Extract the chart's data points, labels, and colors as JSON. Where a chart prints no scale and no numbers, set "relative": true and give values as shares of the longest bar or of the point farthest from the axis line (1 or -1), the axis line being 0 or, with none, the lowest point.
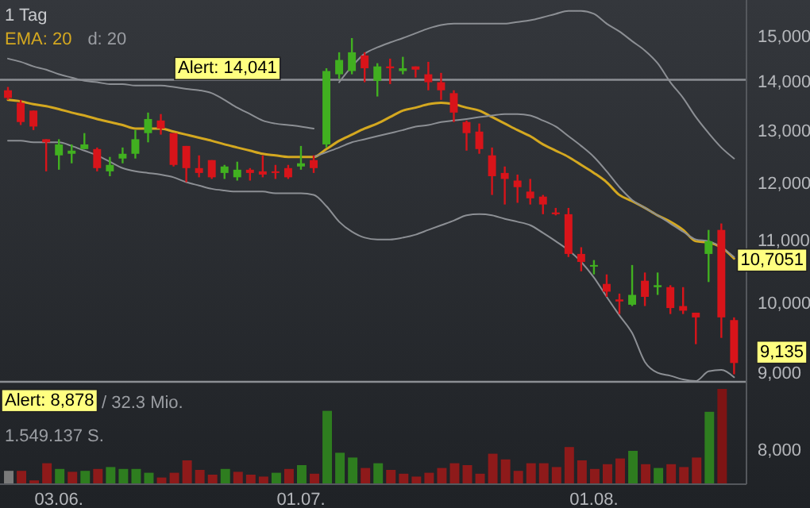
{
  "chart_data": [
    {
      "type": "candlestick",
      "title": "1 Tag",
      "log": true,
      "legend": "top left",
      "tick_labels": "y",
      "ohlc": [
        [
          13820,
          13890,
          13620,
          13660
        ],
        [
          13560,
          13620,
          13110,
          13170
        ],
        [
          13400,
          13400,
          13010,
          13080
        ],
        [
          12830,
          12830,
          12220,
          12770
        ],
        [
          12520,
          12830,
          12250,
          12730
        ],
        [
          12550,
          12730,
          12370,
          12610
        ],
        [
          12640,
          12950,
          12640,
          12730
        ],
        [
          12640,
          12670,
          12220,
          12280
        ],
        [
          12220,
          12490,
          12130,
          12340
        ],
        [
          12460,
          12670,
          12370,
          12550
        ],
        [
          12550,
          13010,
          12460,
          12830
        ],
        [
          12950,
          13360,
          12770,
          13230
        ],
        [
          13200,
          13330,
          12920,
          13040
        ],
        [
          12950,
          12950,
          12310,
          12340
        ],
        [
          12700,
          12700,
          12020,
          12280
        ],
        [
          12280,
          12520,
          12110,
          12190
        ],
        [
          12430,
          12430,
          12080,
          12110
        ],
        [
          12190,
          12340,
          12080,
          12310
        ],
        [
          12110,
          12400,
          12050,
          12250
        ],
        [
          12250,
          12280,
          12050,
          12190
        ],
        [
          12220,
          12520,
          12110,
          12160
        ],
        [
          12220,
          12340,
          12080,
          12190
        ],
        [
          12280,
          12340,
          12080,
          12110
        ],
        [
          12310,
          12700,
          12250,
          12370
        ],
        [
          12430,
          12520,
          12190,
          12280
        ],
        [
          12730,
          14290,
          12670,
          14230
        ],
        [
          14160,
          14640,
          14060,
          14470
        ],
        [
          14230,
          14960,
          14160,
          14640
        ],
        [
          14570,
          14640,
          13990,
          14290
        ],
        [
          14020,
          14400,
          13690,
          14330
        ],
        [
          14330,
          14500,
          13950,
          14290
        ],
        [
          14230,
          14540,
          14160,
          14290
        ],
        [
          14330,
          14330,
          14090,
          14260
        ],
        [
          14160,
          14430,
          13820,
          13990
        ],
        [
          13990,
          14190,
          13620,
          13820
        ],
        [
          13760,
          13820,
          13170,
          13360
        ],
        [
          13170,
          13200,
          12610,
          12950
        ],
        [
          12980,
          13140,
          12550,
          12640
        ],
        [
          12520,
          12670,
          11790,
          12130
        ],
        [
          12190,
          12310,
          11620,
          12080
        ],
        [
          12050,
          12160,
          11650,
          11930
        ],
        [
          11850,
          12080,
          11620,
          11730
        ],
        [
          11760,
          11790,
          11450,
          11620
        ],
        [
          11480,
          11560,
          11430,
          11450
        ],
        [
          11450,
          11560,
          10730,
          10780
        ],
        [
          10780,
          10890,
          10500,
          10650
        ],
        [
          10580,
          10680,
          10450,
          10600
        ],
        [
          10300,
          10450,
          10100,
          10180
        ],
        [
          10060,
          10150,
          9840,
          10030
        ],
        [
          9980,
          10600,
          9960,
          10130
        ],
        [
          10350,
          10480,
          9960,
          10100
        ],
        [
          10250,
          10480,
          10130,
          10280
        ],
        [
          10250,
          10280,
          9840,
          9930
        ],
        [
          9960,
          10250,
          9840,
          9890
        ],
        [
          9860,
          9860,
          9400,
          9790
        ],
        [
          10780,
          11180,
          10330,
          10990
        ],
        [
          11180,
          11290,
          9490,
          9790
        ],
        [
          9750,
          9790,
          8980,
          9135
        ]
      ],
      "series": [
        {
          "type": "line",
          "name": "EMA: 20",
          "color": "#d4a820",
          "values": [
            13620,
            13590,
            13530,
            13490,
            13430,
            13360,
            13300,
            13230,
            13170,
            13110,
            13040,
            13040,
            13040,
            12980,
            12920,
            12860,
            12800,
            12730,
            12670,
            12610,
            12550,
            12520,
            12490,
            12490,
            12490,
            12640,
            12800,
            12920,
            13040,
            13140,
            13270,
            13400,
            13460,
            13530,
            13560,
            13530,
            13460,
            13400,
            13270,
            13140,
            13010,
            12890,
            12730,
            12610,
            12490,
            12340,
            12190,
            12020,
            11790,
            11680,
            11560,
            11430,
            11320,
            11180,
            10990,
            10970,
            10890,
            10705
          ]
        },
        {
          "type": "line",
          "color": "#8c8f94",
          "values": [
            14500,
            14430,
            14330,
            14260,
            14160,
            14090,
            14020,
            13990,
            13950,
            13950,
            13920,
            13920,
            13920,
            13890,
            13850,
            13820,
            13760,
            13620,
            13460,
            13330,
            13200,
            13140,
            13110,
            13080,
            13040,
            null,
            13990,
            14330,
            14610,
            14750,
            14860,
            14960,
            15070,
            15180,
            15260,
            15290,
            15290,
            15290,
            15290,
            15290,
            15330,
            15370,
            15440,
            15520,
            15590,
            15590,
            15520,
            15290,
            15110,
            14890,
            14680,
            14400,
            13990,
            13660,
            13270,
            12950,
            12670,
            12460
          ]
        },
        {
          "type": "line",
          "color": "#8c8f94",
          "values": [
            null,
            null,
            null,
            null,
            null,
            null,
            null,
            null,
            null,
            null,
            null,
            null,
            null,
            null,
            null,
            null,
            null,
            null,
            null,
            null,
            null,
            null,
            null,
            null,
            12490,
            12580,
            12670,
            12770,
            12830,
            12890,
            12950,
            13010,
            13080,
            13110,
            13170,
            13200,
            13230,
            13270,
            13300,
            13330,
            13330,
            13300,
            13200,
            13080,
            12890,
            12700,
            12490,
            12220,
            11930,
            11700,
            11560,
            11430,
            11290,
            11150,
            11020,
            10990,
            10890,
            10730
          ]
        },
        {
          "type": "line",
          "color": "#8c8f94",
          "values": [
            12800,
            12800,
            12770,
            12770,
            12770,
            12700,
            12610,
            12520,
            12400,
            12280,
            12220,
            12190,
            12160,
            12110,
            12020,
            11960,
            11900,
            11870,
            11850,
            11850,
            11850,
            11820,
            11820,
            11820,
            11790,
            11590,
            11320,
            11150,
            11050,
            11020,
            11020,
            11050,
            11100,
            11180,
            11260,
            11340,
            11430,
            11450,
            11430,
            11370,
            11320,
            11260,
            11130,
            10990,
            10840,
            10650,
            10400,
            10100,
            9820,
            9560,
            9150,
            9000,
            8960,
            8910,
            8890,
            9020,
            9040,
            8940
          ]
        }
      ],
      "ylim": [
        7600,
        15850
      ],
      "yticks": [
        {
          "value": 8000,
          "label": "8,000"
        },
        {
          "value": 9000,
          "label": "9,000"
        },
        {
          "value": 10000,
          "label": "10,000"
        },
        {
          "value": 11000,
          "label": "11,000"
        },
        {
          "value": 12000,
          "label": "12,000"
        },
        {
          "value": 13000,
          "label": "13,000"
        },
        {
          "value": 14000,
          "label": "14,000"
        },
        {
          "value": 15000,
          "label": "15,000"
        }
      ],
      "ref_lines": [
        {
          "axis": "y",
          "value": 14041,
          "label": "Alert: 14,041",
          "color": "#8c8f94"
        },
        {
          "axis": "y",
          "value": 8878,
          "label": "Alert: 8,878",
          "color": "#8c8f94"
        }
      ],
      "annotations": [
        "d: 20",
        "10,7051",
        "9,135"
      ]
    },
    {
      "type": "bar",
      "relative": true,
      "tick_labels": "x",
      "categories": [
        null,
        null,
        null,
        null,
        "03.06.",
        null,
        null,
        null,
        null,
        null,
        null,
        null,
        null,
        null,
        null,
        null,
        null,
        null,
        null,
        null,
        null,
        null,
        null,
        "01.07.",
        null,
        null,
        null,
        null,
        null,
        null,
        null,
        null,
        null,
        null,
        null,
        null,
        null,
        null,
        null,
        null,
        null,
        null,
        null,
        null,
        null,
        null,
        "01.08.",
        null,
        null,
        null,
        null,
        null,
        null,
        null,
        null,
        null,
        null,
        null
      ],
      "values": [
        0.14,
        0.14,
        0.04,
        0.22,
        0.16,
        0.13,
        0.14,
        0.16,
        0.18,
        0.16,
        0.16,
        0.12,
        0.07,
        0.12,
        0.25,
        0.15,
        0.1,
        0.16,
        0.13,
        0.1,
        0.08,
        0.12,
        0.16,
        0.2,
        0.11,
        0.77,
        0.33,
        0.28,
        0.17,
        0.22,
        0.15,
        0.11,
        0.08,
        0.12,
        0.17,
        0.22,
        0.2,
        0.11,
        0.32,
        0.26,
        0.14,
        0.22,
        0.22,
        0.18,
        0.39,
        0.25,
        0.16,
        0.21,
        0.27,
        0.35,
        0.21,
        0.17,
        0.21,
        0.18,
        0.28,
        0.76,
        1,
        null
      ],
      "colors": [
        "#7a7a7a",
        "#8e1a1a",
        "#8e1a1a",
        "#8e1a1a",
        "#2e7d1f",
        "#8e1a1a",
        "#2e7d1f",
        "#8e1a1a",
        "#2e7d1f",
        "#2e7d1f",
        "#2e7d1f",
        "#2e7d1f",
        "#8e1a1a",
        "#8e1a1a",
        "#8e1a1a",
        "#8e1a1a",
        "#8e1a1a",
        "#2e7d1f",
        "#8e1a1a",
        "#8e1a1a",
        "#8e1a1a",
        "#2e7d1f",
        "#8e1a1a",
        "#2e7d1f",
        "#8e1a1a",
        "#2e7d1f",
        "#2e7d1f",
        "#2e7d1f",
        "#8e1a1a",
        "#2e7d1f",
        "#8e1a1a",
        "#8e1a1a",
        "#8e1a1a",
        "#8e1a1a",
        "#8e1a1a",
        "#8e1a1a",
        "#8e1a1a",
        "#8e1a1a",
        "#8e1a1a",
        "#8e1a1a",
        "#8e1a1a",
        "#8e1a1a",
        "#8e1a1a",
        "#8e1a1a",
        "#8e1a1a",
        "#8e1a1a",
        "#8e1a1a",
        "#8e1a1a",
        "#8e1a1a",
        "#2e7d1f",
        "#8e1a1a",
        "#2e7d1f",
        "#8e1a1a",
        "#8e1a1a",
        "#8e1a1a",
        "#2e7d1f",
        "#7e1414",
        null
      ],
      "annotations": [
        "/ 32.3 Mio.",
        "1.549.137 S."
      ]
    }
  ]
}
